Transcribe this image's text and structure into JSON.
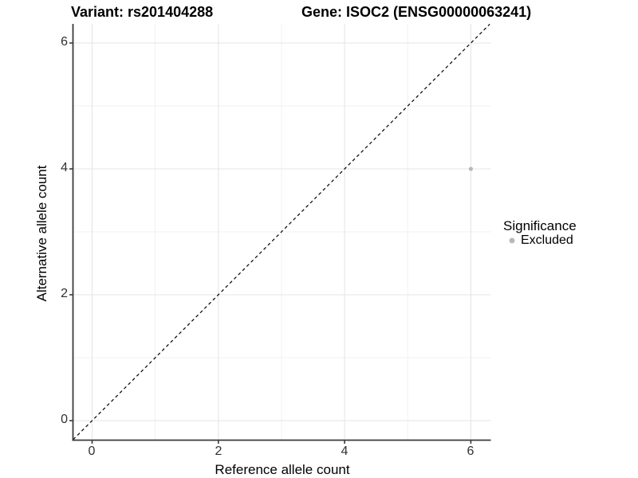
{
  "header": {
    "title_left": "Variant: rs201404288",
    "title_right": "Gene: ISOC2 (ENSG00000063241)"
  },
  "chart_data": {
    "type": "scatter",
    "title_left": "Variant: rs201404288",
    "title_right": "Gene: ISOC2 (ENSG00000063241)",
    "xlabel": "Reference allele count",
    "ylabel": "Alternative allele count",
    "xlim": [
      -0.3,
      6.3
    ],
    "ylim": [
      -0.3,
      6.3
    ],
    "xticks": [
      0,
      2,
      4,
      6
    ],
    "yticks": [
      0,
      2,
      4,
      6
    ],
    "minor_xticks": [
      1,
      3,
      5
    ],
    "minor_yticks": [
      1,
      3,
      5
    ],
    "grid": true,
    "series": [
      {
        "name": "Excluded",
        "points": [
          {
            "x": 6,
            "y": 4
          }
        ]
      }
    ],
    "identity_line": {
      "style": "dashed",
      "from": [
        -0.3,
        -0.3
      ],
      "to": [
        6.3,
        6.3
      ],
      "color": "#000000"
    },
    "legend": {
      "position": "right",
      "title": "Significance",
      "items": [
        {
          "label": "Excluded",
          "color": "#b9b9b9"
        }
      ]
    }
  },
  "colors": {
    "background": "#ffffff",
    "axis_line": "#3a3a3a",
    "grid_major": "#e4e4e4",
    "grid_minor": "#f1f1f1",
    "point": "#b9b9b9",
    "dashed_line": "#000000",
    "tick_text": "#303030"
  }
}
